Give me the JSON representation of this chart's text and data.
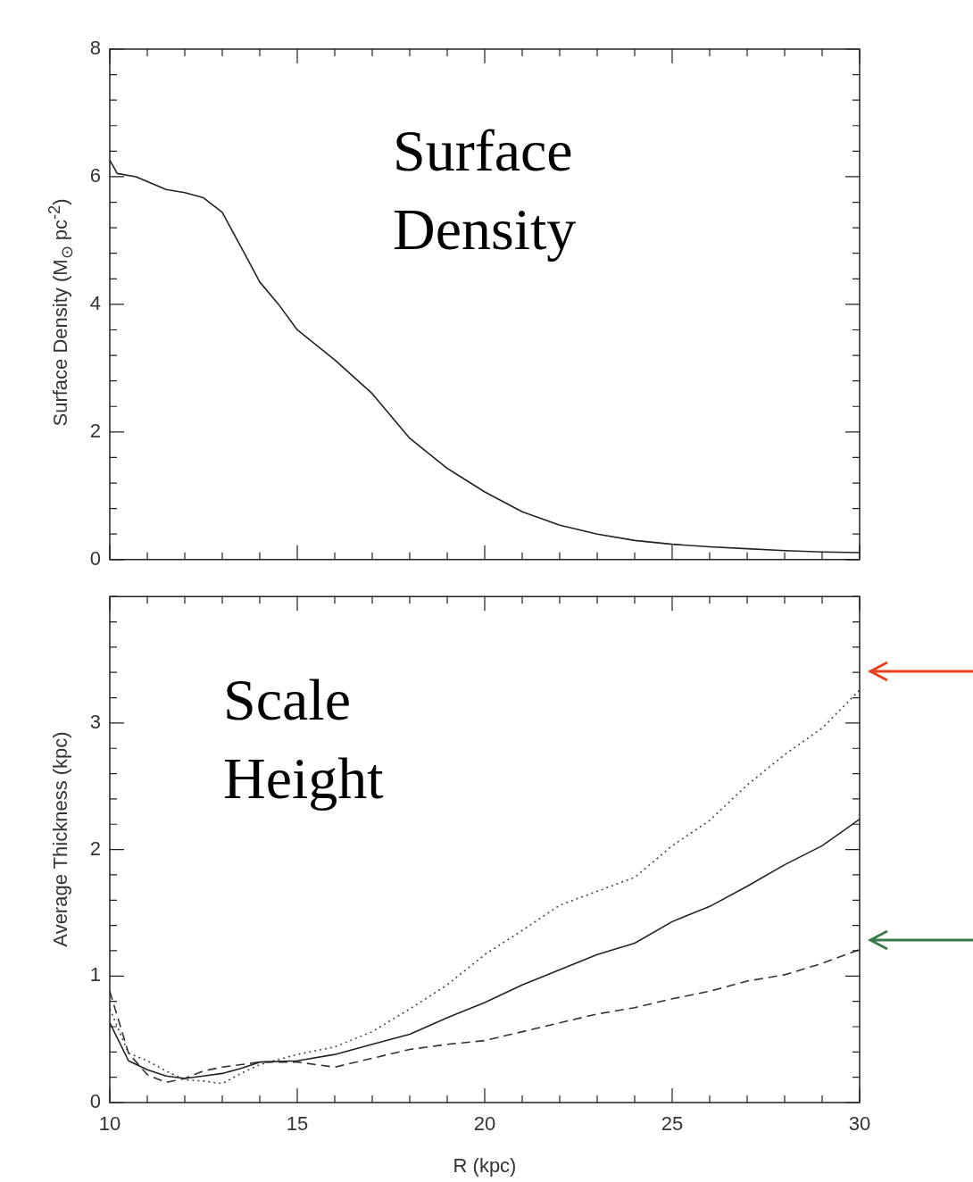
{
  "chart_data": [
    {
      "type": "line",
      "ylabel": "Surface Density (M$_{⊙}$ pc$^{-2}$)",
      "annotations": [
        "Surface Density"
      ],
      "xlim": [
        10,
        30
      ],
      "xticks": [
        10,
        15,
        20,
        25,
        30
      ],
      "ylim": [
        0,
        8
      ],
      "yticks": [
        0,
        2,
        4,
        6,
        8
      ],
      "tick_labels": "y",
      "grid": false,
      "legend": false,
      "marker": "none",
      "x": [
        10,
        10.2,
        10.7,
        11.5,
        12,
        12.5,
        13,
        13.5,
        14,
        14.5,
        15,
        16,
        17,
        18,
        19,
        20,
        21,
        22,
        23,
        24,
        25,
        26,
        27,
        28,
        29,
        30
      ],
      "series": [
        {
          "color": "#222222",
          "line_style": "solid",
          "values": [
            6.26,
            6.05,
            6.0,
            5.8,
            5.75,
            5.67,
            5.44,
            4.9,
            4.35,
            4.0,
            3.6,
            3.13,
            2.6,
            1.9,
            1.43,
            1.06,
            0.75,
            0.54,
            0.4,
            0.3,
            0.24,
            0.2,
            0.17,
            0.14,
            0.12,
            0.11
          ]
        }
      ]
    },
    {
      "type": "line",
      "xlabel": "R (kpc)",
      "ylabel": "Average Thickness (kpc)",
      "annotations": [
        "Scale Height"
      ],
      "xlim": [
        10,
        30
      ],
      "xticks": [
        10,
        15,
        20,
        25,
        30
      ],
      "ylim": [
        0,
        4
      ],
      "yticks": [
        0,
        1,
        2,
        3
      ],
      "grid": false,
      "legend": false,
      "marker": "none",
      "x": [
        10,
        10.5,
        11,
        11.5,
        12,
        12.5,
        13,
        13.5,
        14,
        15,
        16,
        17,
        18,
        19,
        20,
        21,
        22,
        23,
        24,
        25,
        26,
        27,
        28,
        29,
        30
      ],
      "series": [
        {
          "color": "#222222",
          "line_style": "solid",
          "values": [
            0.63,
            0.33,
            0.26,
            0.21,
            0.19,
            0.21,
            0.23,
            0.27,
            0.32,
            0.33,
            0.38,
            0.46,
            0.54,
            0.67,
            0.79,
            0.93,
            1.05,
            1.17,
            1.26,
            1.43,
            1.55,
            1.71,
            1.88,
            2.03,
            2.24
          ]
        },
        {
          "color": "#444444",
          "line_style": "dotted",
          "values": [
            0.74,
            0.39,
            0.33,
            0.25,
            0.18,
            0.17,
            0.15,
            0.23,
            0.3,
            0.38,
            0.44,
            0.56,
            0.74,
            0.93,
            1.17,
            1.36,
            1.56,
            1.67,
            1.78,
            2.03,
            2.23,
            2.51,
            2.75,
            2.96,
            3.26
          ]
        },
        {
          "color": "#333333",
          "line_style": "dashed",
          "values": [
            0.88,
            0.39,
            0.22,
            0.16,
            0.19,
            0.25,
            0.28,
            0.3,
            0.32,
            0.32,
            0.28,
            0.35,
            0.42,
            0.46,
            0.49,
            0.56,
            0.63,
            0.7,
            0.75,
            0.82,
            0.88,
            0.96,
            1.01,
            1.1,
            1.21
          ]
        }
      ]
    }
  ]
}
